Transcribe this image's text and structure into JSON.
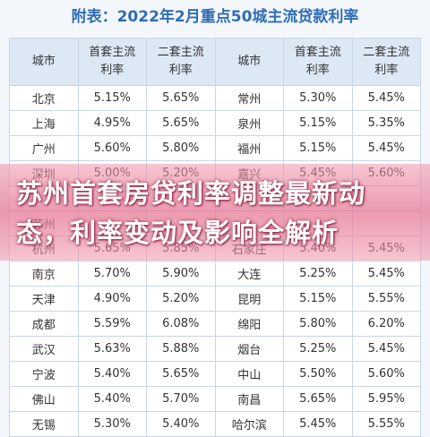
{
  "header": {
    "title": "附表：2022年2月重点50城主流贷款利率"
  },
  "table": {
    "columns": [
      "城市",
      "首套主流\n利率",
      "二套主流\n利率",
      "城市",
      "首套主流\n利率",
      "二套主流\n利率"
    ],
    "rows": [
      [
        "北京",
        "5.15%",
        "5.65%",
        "常州",
        "5.30%",
        "5.45%"
      ],
      [
        "上海",
        "4.95%",
        "5.65%",
        "泉州",
        "5.15%",
        "5.35%"
      ],
      [
        "广州",
        "5.60%",
        "5.80%",
        "福州",
        "5.15%",
        "5.45%"
      ],
      [
        "深圳",
        "5.00%",
        "5.20%",
        "嘉兴",
        "5.45%",
        "5.60%"
      ],
      [],
      [
        "苏州"
      ],
      [
        "杭州",
        "5.65%",
        "5.85%",
        "石家庄",
        "5.40%",
        "5.45%"
      ],
      [
        "南京",
        "5.70%",
        "5.90%",
        "大连",
        "5.25%",
        "5.45%"
      ],
      [
        "天津",
        "4.90%",
        "5.20%",
        "昆明",
        "5.15%",
        "5.55%"
      ],
      [
        "成都",
        "5.59%",
        "6.08%",
        "绵阳",
        "5.80%",
        "6.20%"
      ],
      [
        "武汉",
        "5.63%",
        "5.88%",
        "烟台",
        "5.25%",
        "5.45%"
      ],
      [
        "宁波",
        "5.40%",
        "5.65%",
        "中山",
        "5.50%",
        "5.60%"
      ],
      [
        "佛山",
        "5.40%",
        "5.70%",
        "南昌",
        "5.65%",
        "5.95%"
      ],
      [
        "无锡",
        "5.30%",
        "5.40%",
        "哈尔滨",
        "5.45%",
        "5.55%"
      ]
    ]
  },
  "banner": {
    "text": "苏州首套房贷利率调整最新动态，利率变动及影响全解析"
  }
}
